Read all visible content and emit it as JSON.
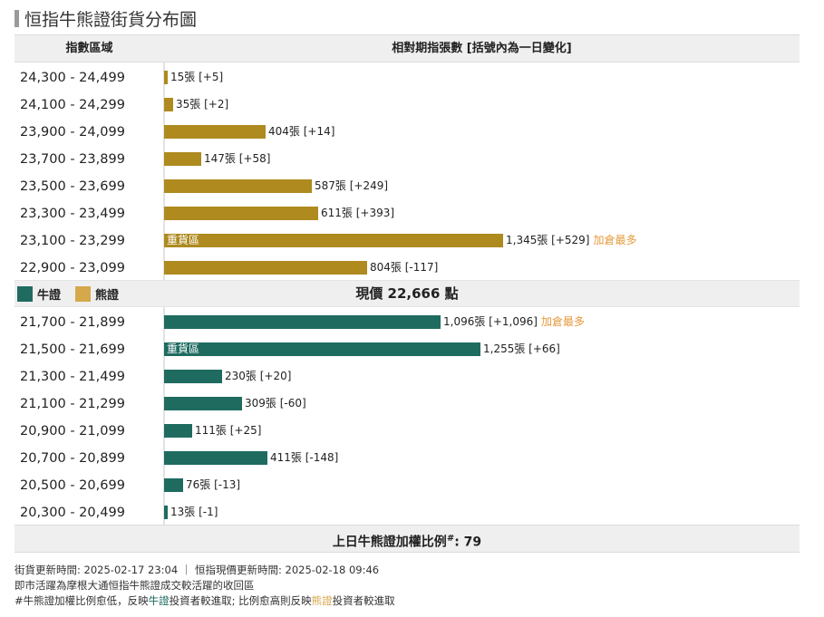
{
  "title": "恒指牛熊證街貨分布圖",
  "header": {
    "col1": "指數區域",
    "col2": "相對期指張數 [括號內為一日變化]"
  },
  "legend": {
    "bull": "牛證",
    "bear": "熊證"
  },
  "current_price": "現價 22,666 點",
  "footer": {
    "ratio_label": "上日牛熊證加權比例",
    "ratio_sup": "#",
    "ratio_value": ": 79"
  },
  "notes": {
    "line1": "街貨更新時間: 2025-02-17 23:04 ｜ 恒指現價更新時間: 2025-02-18 09:46",
    "line2": "即市活躍為摩根大通恒指牛熊證成交較活躍的收回區",
    "line3_a": "#牛熊證加權比例愈低，反映",
    "line3_b": "牛證",
    "line3_c": "投資者較進取; 比例愈高則反映",
    "line3_d": "熊證",
    "line3_e": "投資者較進取"
  },
  "colors": {
    "bull": "#1f6b60",
    "bear": "#ae8a1f",
    "bear_legend": "#d5a84c",
    "tag": "#e69a3c"
  },
  "chart_data": {
    "type": "bar",
    "orientation": "horizontal",
    "bear": [
      {
        "range": "24,300 - 24,499",
        "count": 15,
        "change": "+5",
        "label": "15張 [+5]"
      },
      {
        "range": "24,100 - 24,299",
        "count": 35,
        "change": "+2",
        "label": "35張 [+2]"
      },
      {
        "range": "23,900 - 24,099",
        "count": 404,
        "change": "+14",
        "label": "404張 [+14]"
      },
      {
        "range": "23,700 - 23,899",
        "count": 147,
        "change": "+58",
        "label": "147張 [+58]"
      },
      {
        "range": "23,500 - 23,699",
        "count": 587,
        "change": "+249",
        "label": "587張 [+249]"
      },
      {
        "range": "23,300 - 23,499",
        "count": 611,
        "change": "+393",
        "label": "611張 [+393]"
      },
      {
        "range": "23,100 - 23,299",
        "count": 1345,
        "change": "+529",
        "label": "1,345張 [+529]",
        "tag": "加倉最多",
        "inner": "重貨區"
      },
      {
        "range": "22,900 - 23,099",
        "count": 804,
        "change": "-117",
        "label": "804張 [-117]"
      }
    ],
    "bull": [
      {
        "range": "21,700 - 21,899",
        "count": 1096,
        "change": "+1,096",
        "label": "1,096張 [+1,096]",
        "tag": "加倉最多"
      },
      {
        "range": "21,500 - 21,699",
        "count": 1255,
        "change": "+66",
        "label": "1,255張 [+66]",
        "inner": "重貨區"
      },
      {
        "range": "21,300 - 21,499",
        "count": 230,
        "change": "+20",
        "label": "230張 [+20]"
      },
      {
        "range": "21,100 - 21,299",
        "count": 309,
        "change": "-60",
        "label": "309張 [-60]"
      },
      {
        "range": "20,900 - 21,099",
        "count": 111,
        "change": "+25",
        "label": "111張 [+25]"
      },
      {
        "range": "20,700 - 20,899",
        "count": 411,
        "change": "-148",
        "label": "411張 [-148]"
      },
      {
        "range": "20,500 - 20,699",
        "count": 76,
        "change": "-13",
        "label": "76張 [-13]"
      },
      {
        "range": "20,300 - 20,499",
        "count": 13,
        "change": "-1",
        "label": "13張 [-1]"
      }
    ]
  }
}
